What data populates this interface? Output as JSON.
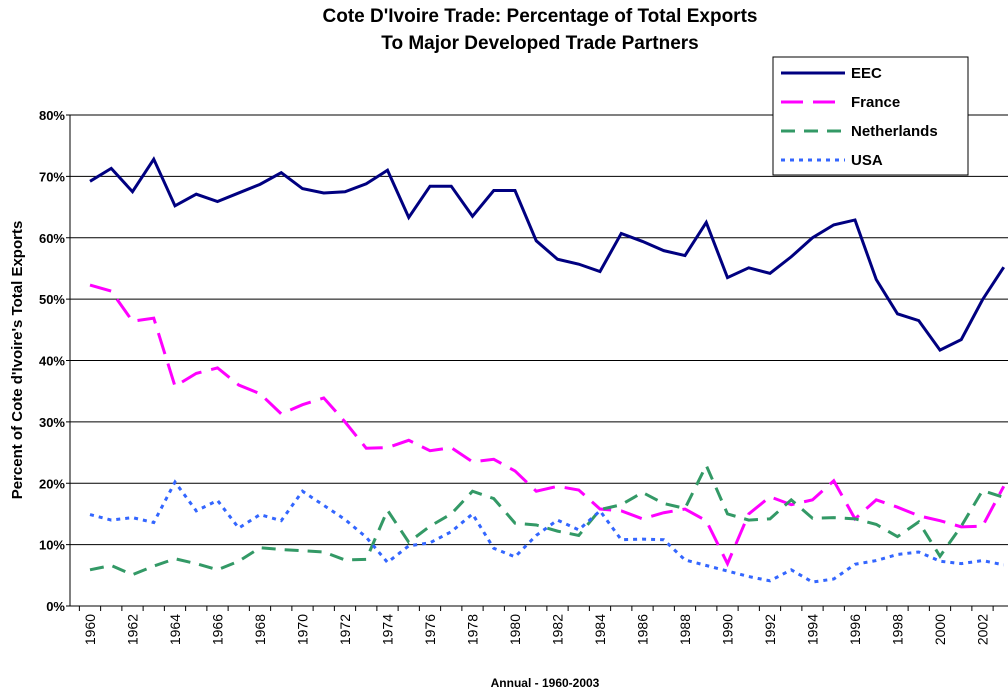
{
  "chart_data": {
    "type": "line",
    "title": [
      "Cote D'Ivoire Trade: Percentage of Total Exports",
      "To Major Developed Trade Partners"
    ],
    "y_label": "Percent of Cote d'Ivoire's Total Exports",
    "x_label": "Annual - 1960-2003",
    "categories": [
      "1960",
      null,
      "1962",
      null,
      "1964",
      null,
      "1966",
      null,
      "1968",
      null,
      "1970",
      null,
      "1972",
      null,
      "1974",
      null,
      "1976",
      null,
      "1978",
      null,
      "1980",
      null,
      "1982",
      null,
      "1984",
      null,
      "1986",
      null,
      "1988",
      null,
      "1990",
      null,
      "1992",
      null,
      "1994",
      null,
      "1996",
      null,
      "1998",
      null,
      "2000",
      null,
      "2002",
      null
    ],
    "series": [
      {
        "name": "EEC",
        "color": "#000080",
        "dash": "solid",
        "values": [
          69.2,
          71.3,
          67.5,
          72.8,
          65.2,
          67.1,
          65.9,
          67.3,
          68.7,
          70.6,
          68.0,
          67.3,
          67.5,
          68.8,
          71.0,
          63.3,
          68.4,
          68.4,
          63.5,
          67.7,
          67.7,
          59.5,
          56.5,
          55.7,
          54.5,
          60.7,
          59.4,
          57.9,
          57.1,
          62.5,
          53.5,
          55.1,
          54.2,
          56.9,
          60.0,
          62.1,
          62.9,
          53.2,
          47.6,
          46.5,
          41.7,
          43.4,
          49.9,
          55.2
        ]
      },
      {
        "name": "France",
        "color": "#ff00ff",
        "dash": "long-dash",
        "values": [
          52.3,
          51.3,
          46.4,
          46.9,
          35.8,
          37.9,
          38.8,
          36.0,
          34.6,
          31.3,
          32.8,
          33.9,
          30.0,
          25.7,
          25.8,
          27.0,
          25.3,
          25.8,
          23.5,
          23.9,
          22.0,
          18.7,
          19.5,
          18.9,
          15.8,
          15.5,
          14.2,
          15.2,
          15.8,
          13.9,
          6.9,
          15.0,
          17.8,
          16.5,
          17.3,
          20.4,
          14.2,
          17.3,
          16.1,
          14.7,
          13.9,
          12.9,
          13.0,
          19.5
        ]
      },
      {
        "name": "Netherlands",
        "color": "#339966",
        "dash": "dash",
        "values": [
          5.9,
          6.6,
          5.1,
          6.5,
          7.7,
          6.9,
          5.9,
          7.3,
          9.5,
          9.2,
          9.0,
          8.8,
          7.5,
          7.6,
          15.6,
          10.4,
          13.0,
          15.0,
          18.7,
          17.5,
          13.5,
          13.2,
          12.2,
          11.5,
          15.7,
          16.5,
          18.5,
          16.7,
          15.9,
          22.9,
          15.0,
          14.0,
          14.2,
          17.3,
          14.3,
          14.4,
          14.2,
          13.3,
          11.3,
          13.7,
          8.1,
          13.0,
          18.8,
          17.7
        ]
      },
      {
        "name": "USA",
        "color": "#3366ff",
        "dash": "dot",
        "values": [
          14.9,
          14.0,
          14.4,
          13.6,
          20.2,
          15.5,
          17.2,
          12.7,
          14.9,
          13.9,
          18.7,
          16.4,
          14.1,
          11.2,
          7.1,
          9.8,
          10.3,
          12.1,
          15.0,
          9.4,
          8.0,
          11.5,
          14.0,
          12.4,
          15.5,
          10.8,
          10.9,
          10.8,
          7.5,
          6.6,
          5.7,
          4.8,
          4.1,
          5.9,
          3.9,
          4.4,
          6.8,
          7.4,
          8.4,
          8.8,
          7.3,
          6.9,
          7.4,
          6.7
        ]
      }
    ],
    "ylim": [
      0,
      80
    ],
    "yticks": [
      {
        "value": 0,
        "label": "0%"
      },
      {
        "value": 10,
        "label": "10%"
      },
      {
        "value": 20,
        "label": "20%"
      },
      {
        "value": 30,
        "label": "30%"
      },
      {
        "value": 40,
        "label": "40%"
      },
      {
        "value": 50,
        "label": "50%"
      },
      {
        "value": 60,
        "label": "60%"
      },
      {
        "value": 70,
        "label": "70%"
      },
      {
        "value": 80,
        "label": "80%"
      }
    ],
    "grid": true,
    "legend": "top-right"
  }
}
